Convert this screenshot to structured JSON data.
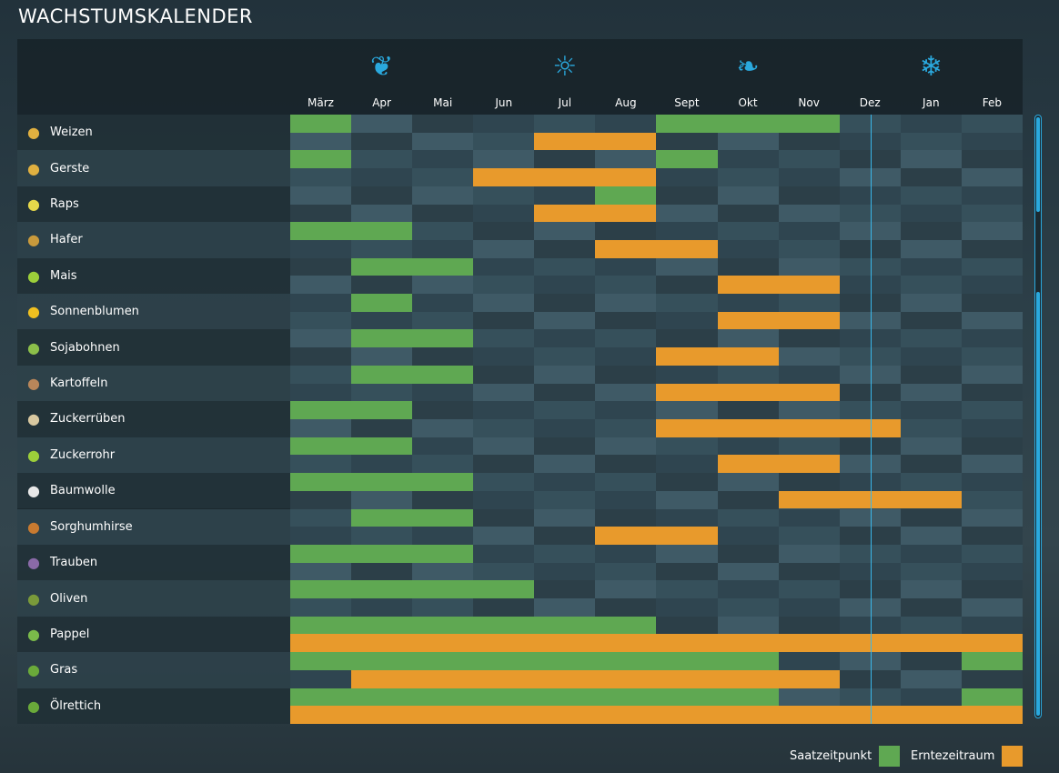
{
  "title": "WACHSTUMSKALENDER",
  "months": [
    "März",
    "Apr",
    "Mai",
    "Jun",
    "Jul",
    "Aug",
    "Sept",
    "Okt",
    "Nov",
    "Dez",
    "Jan",
    "Feb"
  ],
  "seasons": [
    {
      "name": "spring-sprout-icon",
      "month": 1,
      "glyph": "❦"
    },
    {
      "name": "summer-sun-icon",
      "month": 4,
      "glyph": "☼"
    },
    {
      "name": "autumn-leaves-icon",
      "month": 7,
      "glyph": "❧"
    },
    {
      "name": "winter-snowflake-icon",
      "month": 10,
      "glyph": "❄"
    }
  ],
  "current_month_position": 9.25,
  "colors": {
    "sow": "#5fa852",
    "harvest": "#e89a2c",
    "accent": "#2aa9de"
  },
  "crops": [
    {
      "name": "Weizen",
      "icon": "wheat-icon",
      "color": "#e0b040",
      "sow": [
        0,
        6,
        7,
        8
      ],
      "harvest": [
        4,
        5
      ]
    },
    {
      "name": "Gerste",
      "icon": "barley-icon",
      "color": "#e0b040",
      "sow": [
        0,
        6
      ],
      "harvest": [
        3,
        4,
        5
      ]
    },
    {
      "name": "Raps",
      "icon": "canola-icon",
      "color": "#e6d84a",
      "sow": [
        5
      ],
      "harvest": [
        4,
        5
      ]
    },
    {
      "name": "Hafer",
      "icon": "oat-icon",
      "color": "#c99a3c",
      "sow": [
        0,
        1
      ],
      "harvest": [
        5,
        6
      ]
    },
    {
      "name": "Mais",
      "icon": "corn-icon",
      "color": "#9ccf3a",
      "sow": [
        1,
        2
      ],
      "harvest": [
        7,
        8
      ]
    },
    {
      "name": "Sonnenblumen",
      "icon": "sunflower-icon",
      "color": "#f0c020",
      "sow": [
        1
      ],
      "harvest": [
        7,
        8
      ]
    },
    {
      "name": "Sojabohnen",
      "icon": "soybean-icon",
      "color": "#8cbf4a",
      "sow": [
        1,
        2
      ],
      "harvest": [
        6,
        7
      ]
    },
    {
      "name": "Kartoffeln",
      "icon": "potato-icon",
      "color": "#b8865a",
      "sow": [
        1,
        2
      ],
      "harvest": [
        6,
        7,
        8
      ]
    },
    {
      "name": "Zuckerrüben",
      "icon": "sugarbeet-icon",
      "color": "#d8c8a0",
      "sow": [
        0,
        1
      ],
      "harvest": [
        6,
        7,
        8,
        9
      ]
    },
    {
      "name": "Zuckerrohr",
      "icon": "sugarcane-icon",
      "color": "#9ccf3a",
      "sow": [
        0,
        1
      ],
      "harvest": [
        7,
        8
      ]
    },
    {
      "name": "Baumwolle",
      "icon": "cotton-icon",
      "color": "#e8e8e8",
      "sow": [
        0,
        1,
        2
      ],
      "harvest": [
        8,
        9,
        10
      ]
    },
    {
      "name": "Sorghumhirse",
      "icon": "sorghum-icon",
      "color": "#c87a30",
      "sow": [
        1,
        2
      ],
      "harvest": [
        5,
        6
      ]
    },
    {
      "name": "Trauben",
      "icon": "grapes-icon",
      "color": "#8a6aa8",
      "sow": [
        0,
        1,
        2
      ],
      "harvest": []
    },
    {
      "name": "Oliven",
      "icon": "olives-icon",
      "color": "#7a9a3a",
      "sow": [
        0,
        1,
        2,
        3
      ],
      "harvest": []
    },
    {
      "name": "Pappel",
      "icon": "poplar-icon",
      "color": "#7aba4a",
      "sow": [
        0,
        1,
        2,
        3,
        4,
        5
      ],
      "harvest": [
        0,
        1,
        2,
        3,
        4,
        5,
        6,
        7,
        8,
        9,
        10,
        11
      ]
    },
    {
      "name": "Gras",
      "icon": "grass-icon",
      "color": "#6aaa3a",
      "sow": [
        0,
        1,
        2,
        3,
        4,
        5,
        6,
        7,
        11
      ],
      "harvest": [
        1,
        2,
        3,
        4,
        5,
        6,
        7,
        8
      ]
    },
    {
      "name": "Ölrettich",
      "icon": "oilradish-icon",
      "color": "#6aaa3a",
      "sow": [
        0,
        1,
        2,
        3,
        4,
        5,
        6,
        7,
        11
      ],
      "harvest": [
        0,
        1,
        2,
        3,
        4,
        5,
        6,
        7,
        8,
        9,
        10,
        11
      ]
    }
  ],
  "legend": {
    "sow": "Saatzeitpunkt",
    "harvest": "Erntezeitraum"
  }
}
